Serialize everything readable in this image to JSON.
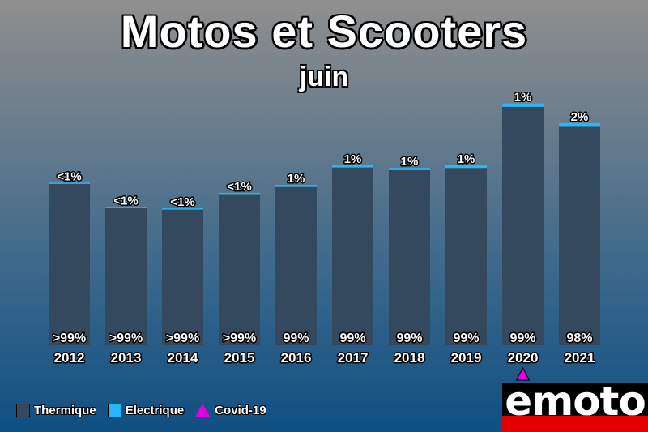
{
  "title": "Motos et Scooters",
  "subtitle": "juin",
  "colors": {
    "thermique": "#34495e",
    "electrique": "#29b6f6",
    "covid": "#e000e0"
  },
  "legend": {
    "thermique": "Thermique",
    "electrique": "Electrique",
    "covid": "Covid-19"
  },
  "logo": {
    "text": "emoto"
  },
  "chart_data": {
    "type": "bar",
    "stacked": true,
    "categories": [
      "2012",
      "2013",
      "2014",
      "2015",
      "2016",
      "2017",
      "2018",
      "2019",
      "2020",
      "2021"
    ],
    "series": [
      {
        "name": "Thermique",
        "values": [
          99.6,
          84.6,
          83.7,
          93.3,
          97.7,
          109.7,
          108.1,
          109.4,
          147.1,
          134.8
        ],
        "labels": [
          ">99%",
          ">99%",
          ">99%",
          ">99%",
          "99%",
          "99%",
          "99%",
          "99%",
          "99%",
          "98%"
        ]
      },
      {
        "name": "Electrique",
        "values": [
          0.6,
          0.5,
          0.5,
          0.7,
          1.3,
          1.3,
          1.3,
          1.6,
          2.1,
          2.3
        ],
        "labels": [
          "<1%",
          "<1%",
          "<1%",
          "<1%",
          "1%",
          "1%",
          "1%",
          "1%",
          "1%",
          "2%"
        ]
      }
    ],
    "annotations": [
      {
        "category": "2020",
        "marker": "triangle",
        "label": "Covid-19"
      }
    ],
    "ylim": [
      0,
      160
    ],
    "grid": false,
    "legend_position": "bottom-left"
  }
}
